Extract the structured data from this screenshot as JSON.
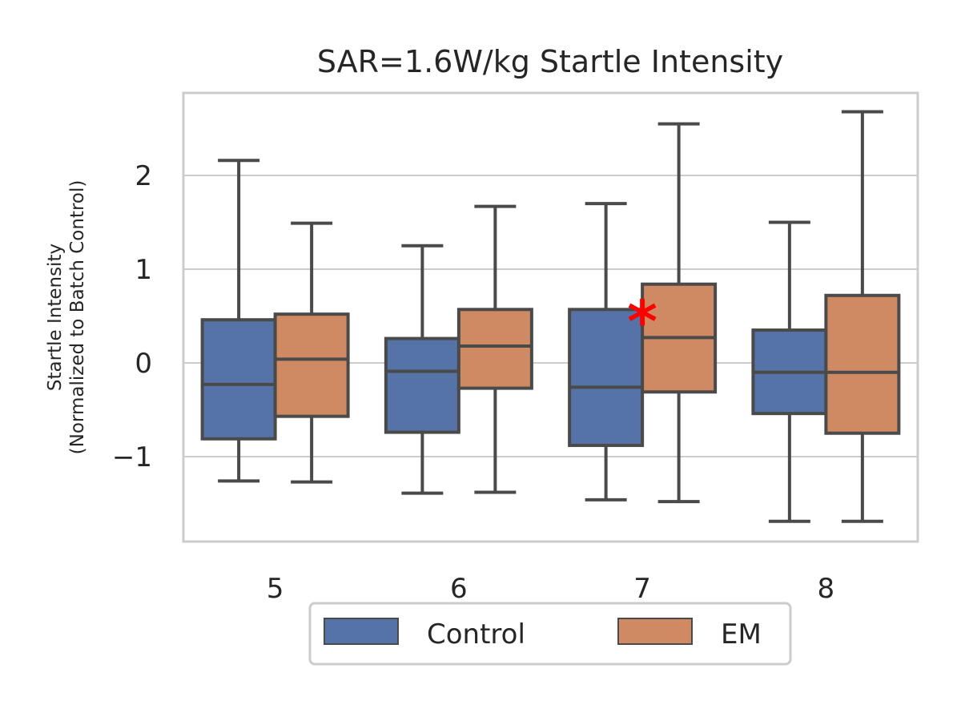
{
  "chart_data": {
    "type": "box",
    "title": "SAR=1.6W/kg Startle Intensity",
    "ylabel_lines": [
      "Startle Intensity",
      "(Normalized to Batch Control)"
    ],
    "xlabel": "",
    "categories": [
      "5",
      "6",
      "7",
      "8"
    ],
    "ylim": [
      -1.9,
      2.9
    ],
    "yticks": [
      -1,
      0,
      1,
      2
    ],
    "ytick_labels": [
      "−1",
      "0",
      "1",
      "2"
    ],
    "grid": true,
    "legend": {
      "placement": "bottom-center",
      "columns": 2
    },
    "series": [
      {
        "name": "Control",
        "color": "#5573a6",
        "boxes": [
          {
            "category": "5",
            "whislo": -1.26,
            "q1": -0.81,
            "med": -0.23,
            "q3": 0.46,
            "whishi": 2.16
          },
          {
            "category": "6",
            "whislo": -1.39,
            "q1": -0.74,
            "med": -0.09,
            "q3": 0.26,
            "whishi": 1.25
          },
          {
            "category": "7",
            "whislo": -1.46,
            "q1": -0.88,
            "med": -0.26,
            "q3": 0.57,
            "whishi": 1.7
          },
          {
            "category": "8",
            "whislo": -1.69,
            "q1": -0.54,
            "med": -0.1,
            "q3": 0.35,
            "whishi": 1.5
          }
        ]
      },
      {
        "name": "EM",
        "color": "#cf8a63",
        "boxes": [
          {
            "category": "5",
            "whislo": -1.27,
            "q1": -0.57,
            "med": 0.04,
            "q3": 0.52,
            "whishi": 1.49
          },
          {
            "category": "6",
            "whislo": -1.38,
            "q1": -0.27,
            "med": 0.18,
            "q3": 0.57,
            "whishi": 1.67
          },
          {
            "category": "7",
            "whislo": -1.48,
            "q1": -0.31,
            "med": 0.27,
            "q3": 0.84,
            "whishi": 2.55
          },
          {
            "category": "8",
            "whislo": -1.69,
            "q1": -0.75,
            "med": -0.1,
            "q3": 0.72,
            "whishi": 2.68
          }
        ]
      }
    ],
    "annotations": [
      {
        "text": "*",
        "category": "7",
        "y": 0.55,
        "color": "#ff0000"
      }
    ]
  }
}
